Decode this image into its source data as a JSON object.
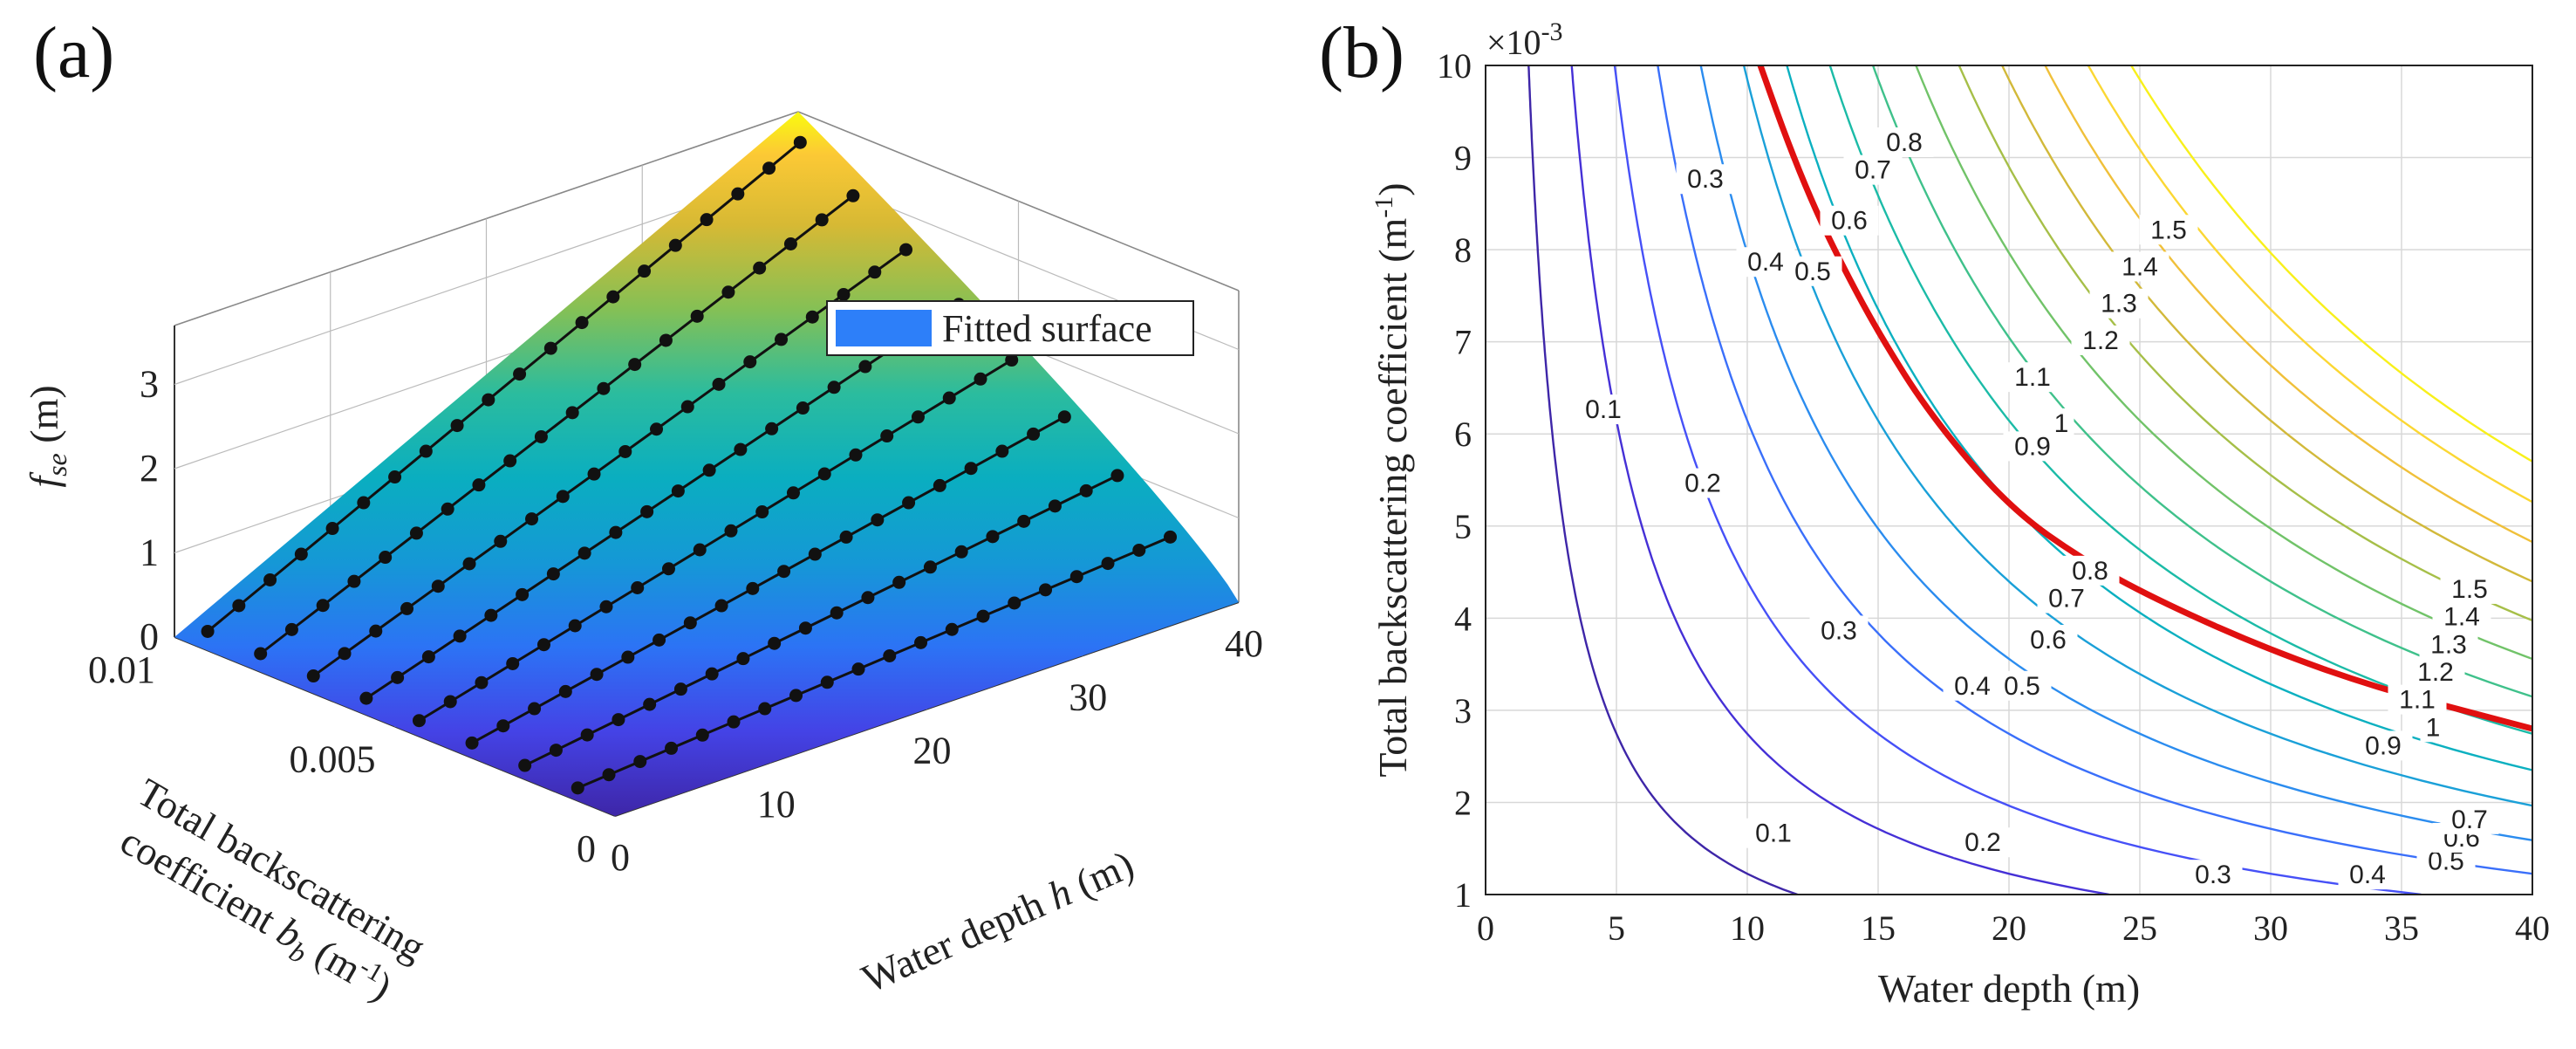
{
  "panels": {
    "a": {
      "letter": "(a)"
    },
    "b": {
      "letter": "(b)"
    }
  },
  "chart_data": [
    {
      "panel": "(a)",
      "type": "surface3d",
      "zlabel_main": "f",
      "zlabel_sub": "se",
      "zlabel_unit": " (m)",
      "xlabel_main": "Water depth ",
      "xlabel_var": "h",
      "xlabel_unit": " (m)",
      "ylabel_line1": "Total backscattering",
      "ylabel_line2_main": "coefficient ",
      "ylabel_line2_var": "b",
      "ylabel_line2_sub": "b",
      "ylabel_line2_unit": " (m",
      "ylabel_line2_sup": "-1",
      "ylabel_line2_close": ")",
      "x_ticks": [
        "0",
        "10",
        "20",
        "30",
        "40"
      ],
      "y_ticks": [
        "0",
        "0.005",
        "0.01"
      ],
      "z_ticks": [
        "0",
        "1",
        "2",
        "3"
      ],
      "xlim": [
        0,
        40
      ],
      "ylim": [
        0,
        0.01
      ],
      "zlim": [
        0,
        3.5
      ],
      "legend": "Fitted surface",
      "legend_color": "#2d7ff9",
      "colormap": "parula",
      "surface_peak_z": 3.7,
      "sample_depths": [
        1,
        3,
        5,
        7,
        9,
        11,
        13,
        15,
        17,
        19,
        21,
        23,
        25,
        27,
        29,
        31,
        33,
        35,
        37,
        39
      ],
      "sample_bb": [
        0.0012,
        0.0024,
        0.0036,
        0.0048,
        0.006,
        0.0072,
        0.0084,
        0.0096
      ]
    },
    {
      "panel": "(b)",
      "type": "contour",
      "xlabel": "Water depth (m)",
      "ylabel": "Total backscattering coefficient (m",
      "ylabel_sup": "-1",
      "ylabel_close": ")",
      "y_scale_label": "×10",
      "y_scale_exp": "-3",
      "x_ticks": [
        "0",
        "5",
        "10",
        "15",
        "20",
        "25",
        "30",
        "35",
        "40"
      ],
      "y_ticks": [
        "1",
        "2",
        "3",
        "4",
        "5",
        "6",
        "7",
        "8",
        "9",
        "10"
      ],
      "xlim": [
        0,
        40
      ],
      "ylim": [
        1,
        10
      ],
      "grid": true,
      "levels": [
        0.1,
        0.2,
        0.3,
        0.4,
        0.5,
        0.6,
        0.7,
        0.8,
        0.9,
        1,
        1.1,
        1.2,
        1.3,
        1.4,
        1.5
      ],
      "contour_labels": [
        {
          "text": "0.1",
          "x": 4.5,
          "y": 6.2
        },
        {
          "text": "0.1",
          "x": 11,
          "y": 1.6
        },
        {
          "text": "0.2",
          "x": 8.3,
          "y": 5.4
        },
        {
          "text": "0.2",
          "x": 19,
          "y": 1.5
        },
        {
          "text": "0.3",
          "x": 8.4,
          "y": 8.7
        },
        {
          "text": "0.3",
          "x": 13.5,
          "y": 3.8
        },
        {
          "text": "0.3",
          "x": 27.8,
          "y": 1.15
        },
        {
          "text": "0.4",
          "x": 10.7,
          "y": 7.8
        },
        {
          "text": "0.4",
          "x": 18.6,
          "y": 3.2
        },
        {
          "text": "0.4",
          "x": 33.7,
          "y": 1.15
        },
        {
          "text": "0.5",
          "x": 12.5,
          "y": 7.7
        },
        {
          "text": "0.5",
          "x": 20.5,
          "y": 3.2
        },
        {
          "text": "0.5",
          "x": 36.7,
          "y": 1.3
        },
        {
          "text": "0.6",
          "x": 13.9,
          "y": 8.25
        },
        {
          "text": "0.6",
          "x": 21.5,
          "y": 3.7
        },
        {
          "text": "0.6",
          "x": 37.3,
          "y": 1.55
        },
        {
          "text": "0.7",
          "x": 14.8,
          "y": 8.8
        },
        {
          "text": "0.7",
          "x": 22.2,
          "y": 4.15
        },
        {
          "text": "0.7",
          "x": 37.6,
          "y": 1.75
        },
        {
          "text": "0.8",
          "x": 16.0,
          "y": 9.1
        },
        {
          "text": "0.8",
          "x": 23.1,
          "y": 4.45
        },
        {
          "text": "0.9",
          "x": 20.9,
          "y": 5.8
        },
        {
          "text": "0.9",
          "x": 34.3,
          "y": 2.55
        },
        {
          "text": "1",
          "x": 22.0,
          "y": 6.05
        },
        {
          "text": "1",
          "x": 36.2,
          "y": 2.75
        },
        {
          "text": "1.1",
          "x": 20.9,
          "y": 6.55
        },
        {
          "text": "1.1",
          "x": 35.6,
          "y": 3.05
        },
        {
          "text": "1.2",
          "x": 23.5,
          "y": 6.95
        },
        {
          "text": "1.2",
          "x": 36.3,
          "y": 3.35
        },
        {
          "text": "1.3",
          "x": 24.2,
          "y": 7.35
        },
        {
          "text": "1.3",
          "x": 36.8,
          "y": 3.65
        },
        {
          "text": "1.4",
          "x": 25.0,
          "y": 7.75
        },
        {
          "text": "1.4",
          "x": 37.3,
          "y": 3.95
        },
        {
          "text": "1.5",
          "x": 26.1,
          "y": 8.15
        },
        {
          "text": "1.5",
          "x": 37.6,
          "y": 4.25
        }
      ],
      "red_curve": {
        "color": "#e01010",
        "x": [
          10.5,
          11.5,
          12.5,
          13.5,
          15,
          17,
          20,
          23,
          26,
          30,
          34,
          38,
          40
        ],
        "y": [
          10.0,
          9.2,
          8.5,
          7.9,
          7.1,
          6.2,
          5.2,
          4.6,
          4.15,
          3.65,
          3.25,
          2.95,
          2.8
        ]
      }
    }
  ]
}
